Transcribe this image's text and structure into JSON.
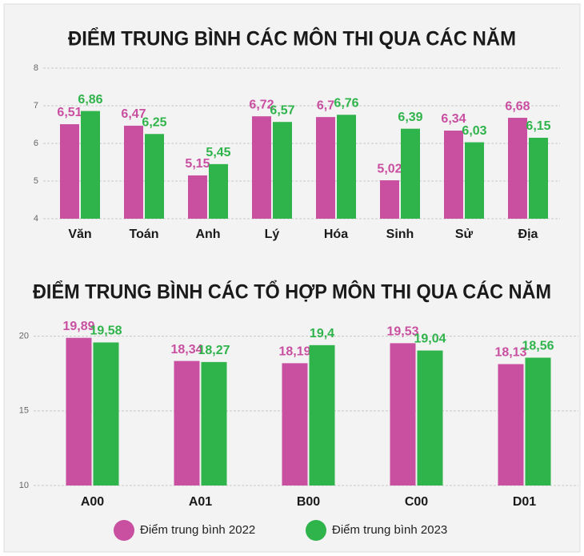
{
  "chart_data": [
    {
      "type": "bar",
      "title": "ĐIỂM TRUNG BÌNH CÁC MÔN THI QUA CÁC NĂM",
      "categories": [
        "Văn",
        "Toán",
        "Anh",
        "Lý",
        "Hóa",
        "Sinh",
        "Sử",
        "Địa"
      ],
      "series": [
        {
          "color": "#c94fa0",
          "values": [
            6.51,
            6.47,
            5.15,
            6.72,
            6.7,
            5.02,
            6.34,
            6.68
          ],
          "value_labels": [
            "6,51",
            "6,47",
            "5,15",
            "6,72",
            "6,7",
            "5,02",
            "6,34",
            "6,68"
          ]
        },
        {
          "color": "#2fb34b",
          "values": [
            6.86,
            6.25,
            5.45,
            6.57,
            6.76,
            6.39,
            6.03,
            6.15
          ],
          "value_labels": [
            "6,86",
            "6,25",
            "5,45",
            "6,57",
            "6,76",
            "6,39",
            "6,03",
            "6,15"
          ]
        }
      ],
      "ylim": [
        4,
        8
      ],
      "yticks": [
        4,
        5,
        6,
        7,
        8
      ],
      "grid": true
    },
    {
      "type": "bar",
      "title": "ĐIỂM TRUNG BÌNH CÁC TỔ HỢP MÔN THI QUA CÁC NĂM",
      "categories": [
        "A00",
        "A01",
        "B00",
        "C00",
        "D01"
      ],
      "series": [
        {
          "name": "Điểm trung bình 2022",
          "color": "#c94fa0",
          "values": [
            19.89,
            18.34,
            18.19,
            19.53,
            18.13
          ],
          "value_labels": [
            "19,89",
            "18,34",
            "18,19",
            "19,53",
            "18,13"
          ]
        },
        {
          "name": "Điểm trung bình 2023",
          "color": "#2fb34b",
          "values": [
            19.58,
            18.27,
            19.4,
            19.04,
            18.56
          ],
          "value_labels": [
            "19,58",
            "18,27",
            "19,4",
            "19,04",
            "18,56"
          ]
        }
      ],
      "ylim": [
        10,
        21
      ],
      "yticks": [
        10,
        15,
        20
      ],
      "grid": true
    }
  ]
}
